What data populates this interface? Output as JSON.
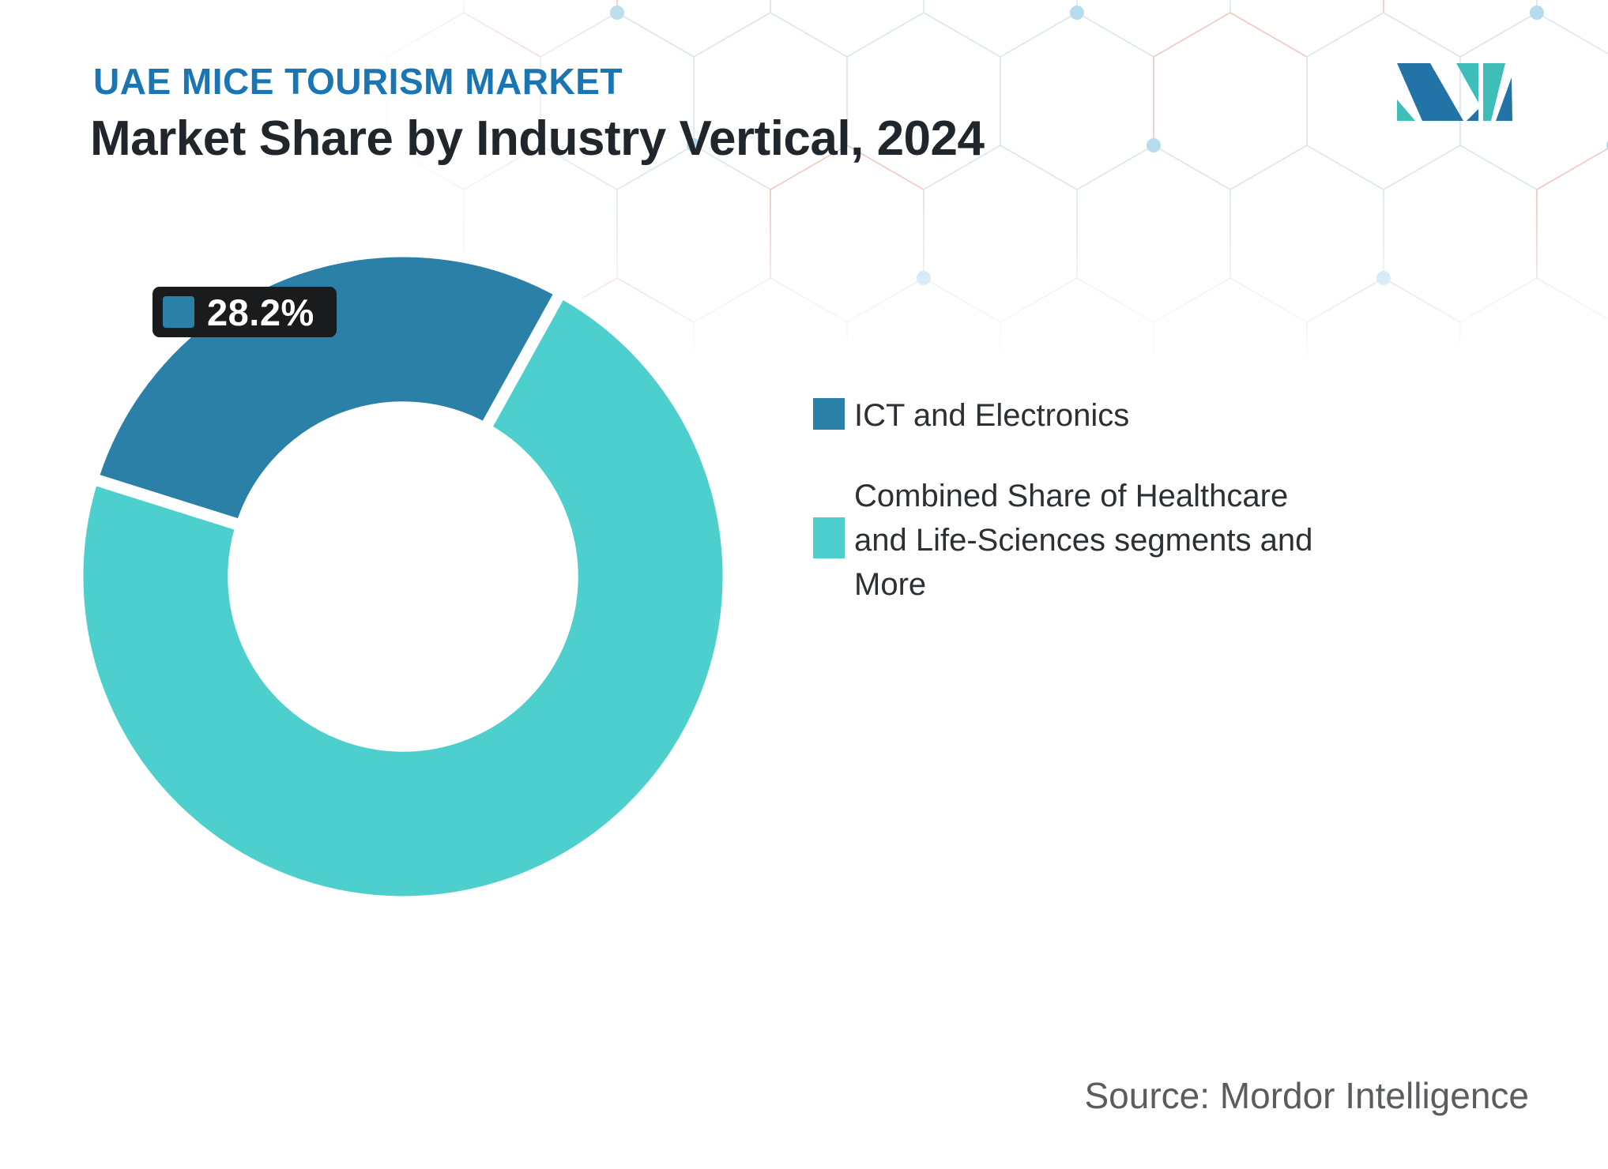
{
  "header": {
    "eyebrow": "UAE MICE TOURISM MARKET",
    "title": "Market Share by Industry Vertical, 2024"
  },
  "branding": {
    "logo_name": "mordor-intelligence-logo",
    "logo_blue": "#2373A7",
    "logo_teal": "#3FBDB9"
  },
  "chart_data": {
    "type": "pie",
    "subtype": "donut",
    "title": "UAE MICE Tourism Market — Market Share by Industry Vertical, 2024",
    "start_angle_deg": -72.5,
    "inner_radius_ratio": 0.52,
    "gap_stroke_color": "#ffffff",
    "segments": [
      {
        "label": "ICT and Electronics",
        "value": 28.2,
        "color": "#2B80A7"
      },
      {
        "label": "Combined Share of Healthcare and Life-Sciences segments and More",
        "value": 71.8,
        "color": "#4DCFCE"
      }
    ],
    "data_label": {
      "text": "28.2%",
      "applies_to": "ICT and Electronics"
    },
    "legend_position": "right"
  },
  "callout": {
    "label": "28.2%",
    "swatch_color": "#2B80A7",
    "bg": "#191B1D"
  },
  "legend": {
    "items": [
      {
        "label": "ICT and Electronics",
        "color": "#2B80A7"
      },
      {
        "label": "Combined Share of Healthcare\nand Life-Sciences segments and\nMore",
        "color": "#4DCFCE"
      }
    ]
  },
  "source": {
    "text": "Source: Mordor Intelligence"
  }
}
